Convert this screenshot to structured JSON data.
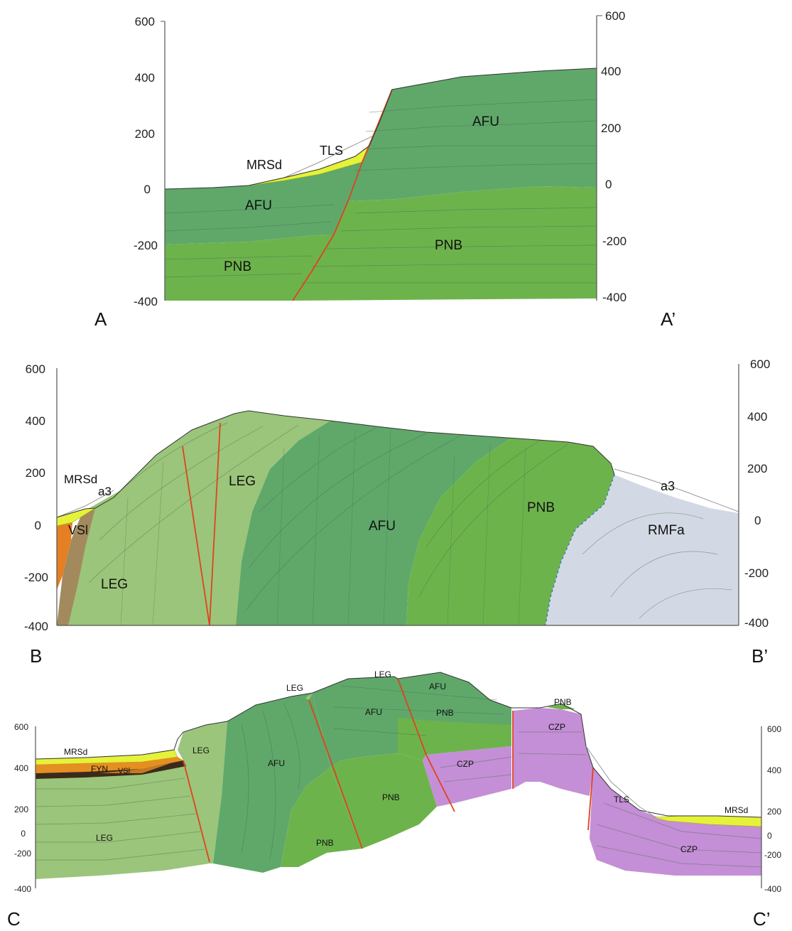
{
  "sections": [
    {
      "id": "A",
      "start_label": "A",
      "end_label": "A’",
      "left_ticks": [
        "600",
        "400",
        "200",
        "0",
        "-200",
        "-400"
      ],
      "right_ticks": [
        "600",
        "400",
        "200",
        "0",
        "-200",
        "-400"
      ],
      "unit_labels": [
        "MRSd",
        "TLS",
        "AFU",
        "AFU",
        "PNB",
        "PNB"
      ]
    },
    {
      "id": "B",
      "start_label": "B",
      "end_label": "B’",
      "left_ticks": [
        "600",
        "400",
        "200",
        "0",
        "-200",
        "-400"
      ],
      "right_ticks": [
        "600",
        "400",
        "200",
        "0",
        "-200",
        "-400"
      ],
      "unit_labels": [
        "MRSd",
        "a3",
        "VSl",
        "LEG",
        "LEG",
        "AFU",
        "PNB",
        "a3",
        "RMFa"
      ]
    },
    {
      "id": "C",
      "start_label": "C",
      "end_label": "C’",
      "left_ticks": [
        "600",
        "400",
        "200",
        "0",
        "-200",
        "-400"
      ],
      "right_ticks": [
        "600",
        "400",
        "200",
        "0",
        "-200",
        "-400"
      ],
      "unit_labels": [
        "MRSd",
        "FYN",
        "VSl",
        "LEG",
        "LEG",
        "LEG",
        "LEG",
        "AFU",
        "AFU",
        "AFU",
        "PNB",
        "PNB",
        "PNB",
        "PNB",
        "CZP",
        "CZP",
        "TLS",
        "MRSd",
        "CZP"
      ]
    }
  ],
  "colors": {
    "AFU": "#5fa86a",
    "PNB": "#6db34c",
    "LEG": "#9bc57a",
    "MRSd": "#e6f23a",
    "FYN": "#e58f22",
    "VSl_orange": "#e57f24",
    "VSl_brown": "#a38a5e",
    "RMFa": "#d3d9e4",
    "CZP": "#c48fd6",
    "dark_band": "#3b2a1a",
    "fault": "#e0431d"
  }
}
